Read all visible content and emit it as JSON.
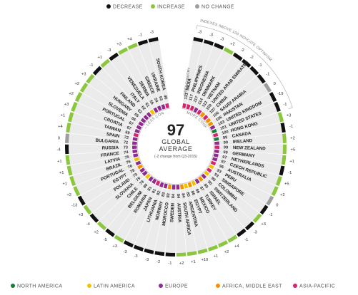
{
  "legend_top": [
    {
      "label": "DECREASE",
      "color": "#111111"
    },
    {
      "label": "INCREASE",
      "color": "#8cc63f"
    },
    {
      "label": "NO CHANGE",
      "color": "#9e9e9e"
    }
  ],
  "legend_bottom": [
    {
      "label": "NORTH AMERICA",
      "color": "#1a7a3a"
    },
    {
      "label": "LATIN AMERICA",
      "color": "#f2c200"
    },
    {
      "label": "EUROPE",
      "color": "#8e2d8e"
    },
    {
      "label": "AFRICA, MIDDLE EAST",
      "color": "#f39200"
    },
    {
      "label": "ASIA-PACIFIC",
      "color": "#d6246e"
    }
  ],
  "center": {
    "value": "97",
    "line1": "GLOBAL",
    "line2": "AVERAGE",
    "line3": "(-2 change from Q3-2015)"
  },
  "annotations": {
    "above_100": "INDEXES ABOVE 100 INDICATE OPTIMISM",
    "more_confident": "MORE CONFIDENT +",
    "less_confident": "– LESS CONFIDENT",
    "header": "INDEX  COUNTRY"
  },
  "chart_data": {
    "type": "radial-bar",
    "series_colors": {
      "decrease": "#111111",
      "increase": "#8cc63f",
      "no_change": "#9e9e9e"
    },
    "countries": [
      {
        "name": "INDIA",
        "index": 131,
        "change": "-3",
        "region": "ASIA-PACIFIC"
      },
      {
        "name": "PHILIPPINES",
        "index": 117,
        "change": "-3",
        "region": "ASIA-PACIFIC"
      },
      {
        "name": "INDONESIA",
        "index": 117,
        "change": "-3",
        "region": "ASIA-PACIFIC"
      },
      {
        "name": "DENMARK",
        "index": 114,
        "change": "+2",
        "region": "EUROPE"
      },
      {
        "name": "VIETNAM",
        "index": 112,
        "change": "-2",
        "region": "ASIA-PACIFIC"
      },
      {
        "name": "UNITED ARAB EMIRATES",
        "index": 109,
        "change": "-2",
        "region": "AFRICA, MIDDLE EAST"
      },
      {
        "name": "CHINA",
        "index": 107,
        "change": "-1",
        "region": "ASIA-PACIFIC"
      },
      {
        "name": "SAUDI ARABIA",
        "index": 106,
        "change": "-1",
        "region": "AFRICA, MIDDLE EAST"
      },
      {
        "name": "PAKISTAN",
        "index": 106,
        "change": "0",
        "region": "AFRICA, MIDDLE EAST"
      },
      {
        "name": "UNITED KINGDOM",
        "index": 103,
        "change": "-19",
        "region": "EUROPE"
      },
      {
        "name": "UNITED STATES",
        "index": 101,
        "change": "-1",
        "region": "NORTH AMERICA"
      },
      {
        "name": "HONG KONG",
        "index": 100,
        "change": "+3",
        "region": "ASIA-PACIFIC"
      },
      {
        "name": "CANADA",
        "index": 99,
        "change": "-1",
        "region": "NORTH AMERICA"
      },
      {
        "name": "IRELAND",
        "index": 99,
        "change": "+2",
        "region": "EUROPE"
      },
      {
        "name": "NEW ZEALAND",
        "index": 99,
        "change": "+5",
        "region": "ASIA-PACIFIC"
      },
      {
        "name": "GERMANY",
        "index": 99,
        "change": "+1",
        "region": "EUROPE"
      },
      {
        "name": "NETHERLANDS",
        "index": 97,
        "change": "-1",
        "region": "EUROPE"
      },
      {
        "name": "CZECH REPUBLIC",
        "index": 97,
        "change": "+5",
        "region": "EUROPE"
      },
      {
        "name": "AUSTRALIA",
        "index": 95,
        "change": "+2",
        "region": "ASIA-PACIFIC"
      },
      {
        "name": "PERU",
        "index": 93,
        "change": "0",
        "region": "LATIN AMERICA"
      },
      {
        "name": "SINGAPORE",
        "index": 93,
        "change": "-1",
        "region": "ASIA-PACIFIC"
      },
      {
        "name": "COLOMBIA",
        "index": 90,
        "change": "+3",
        "region": "LATIN AMERICA"
      },
      {
        "name": "SWITZERLAND",
        "index": 90,
        "change": "-3",
        "region": "EUROPE"
      },
      {
        "name": "ISRAEL",
        "index": 89,
        "change": "-1",
        "region": "AFRICA, MIDDLE EAST"
      },
      {
        "name": "TURKEY",
        "index": 87,
        "change": "+4",
        "region": "EUROPE"
      },
      {
        "name": "MEXICO",
        "index": 86,
        "change": "+2",
        "region": "LATIN AMERICA"
      },
      {
        "name": "EGYPT",
        "index": 86,
        "change": "+1",
        "region": "AFRICA, MIDDLE EAST"
      },
      {
        "name": "ARGENTINA",
        "index": 85,
        "change": "+10",
        "region": "LATIN AMERICA"
      },
      {
        "name": "SOUTH AFRICA",
        "index": 84,
        "change": "+1",
        "region": "AFRICA, MIDDLE EAST"
      },
      {
        "name": "AUSTRIA",
        "index": 84,
        "change": "+2",
        "region": "EUROPE"
      },
      {
        "name": "SWEDEN",
        "index": 84,
        "change": "-1",
        "region": "EUROPE"
      },
      {
        "name": "MOROCCO",
        "index": 83,
        "change": "-2",
        "region": "AFRICA, MIDDLE EAST"
      },
      {
        "name": "NORWAY",
        "index": 83,
        "change": "-3",
        "region": "EUROPE"
      },
      {
        "name": "LITHUANIA",
        "index": 82,
        "change": "-3",
        "region": "EUROPE"
      },
      {
        "name": "JAPAN",
        "index": 81,
        "change": "-3",
        "region": "ASIA-PACIFIC"
      },
      {
        "name": "ROMANIA",
        "index": 81,
        "change": "+3",
        "region": "EUROPE"
      },
      {
        "name": "BELGIUM",
        "index": 80,
        "change": "-5",
        "region": "EUROPE"
      },
      {
        "name": "CHILE",
        "index": 79,
        "change": "+2",
        "region": "LATIN AMERICA"
      },
      {
        "name": "SLOVAKIA",
        "index": 79,
        "change": "-4",
        "region": "EUROPE"
      },
      {
        "name": "POLAND",
        "index": 79,
        "change": "+3",
        "region": "EUROPE"
      },
      {
        "name": "EGYPT",
        "index": 78,
        "change": "-13",
        "region": "AFRICA, MIDDLE EAST"
      },
      {
        "name": "PORTUGAL",
        "index": 76,
        "change": "+2",
        "region": "EUROPE"
      },
      {
        "name": "BRAZIL",
        "index": 76,
        "change": "+1",
        "region": "LATIN AMERICA"
      },
      {
        "name": "LATVIA",
        "index": 75,
        "change": "+1",
        "region": "EUROPE"
      },
      {
        "name": "FRANCE",
        "index": 74,
        "change": "+1",
        "region": "EUROPE"
      },
      {
        "name": "RUSSIA",
        "index": 73,
        "change": "-4",
        "region": "EUROPE"
      },
      {
        "name": "BULGARIA",
        "index": 72,
        "change": "0",
        "region": "EUROPE"
      },
      {
        "name": "SPAIN",
        "index": 72,
        "change": "+4",
        "region": "EUROPE"
      },
      {
        "name": "TAIWAN",
        "index": 69,
        "change": "+1",
        "region": "ASIA-PACIFIC"
      },
      {
        "name": "CROATIA",
        "index": 67,
        "change": "+3",
        "region": "EUROPE"
      },
      {
        "name": "PORTUGAL",
        "index": 67,
        "change": "+2",
        "region": "EUROPE"
      },
      {
        "name": "SLOVENIA",
        "index": 66,
        "change": "+2",
        "region": "EUROPE"
      },
      {
        "name": "HUNGARY",
        "index": 65,
        "change": "+3",
        "region": "EUROPE"
      },
      {
        "name": "FINLAND",
        "index": 62,
        "change": "-1",
        "region": "EUROPE"
      },
      {
        "name": "ITALY",
        "index": 62,
        "change": "+1",
        "region": "EUROPE"
      },
      {
        "name": "VENEZUELA",
        "index": 61,
        "change": "-3",
        "region": "LATIN AMERICA"
      },
      {
        "name": "SERBIA",
        "index": 55,
        "change": "+3",
        "region": "EUROPE"
      },
      {
        "name": "GREECE",
        "index": 54,
        "change": "+4",
        "region": "EUROPE"
      },
      {
        "name": "UKRAINE",
        "index": 53,
        "change": "-1",
        "region": "EUROPE"
      },
      {
        "name": "SOUTH KOREA",
        "index": 46,
        "change": "-3",
        "region": "ASIA-PACIFIC"
      }
    ]
  }
}
